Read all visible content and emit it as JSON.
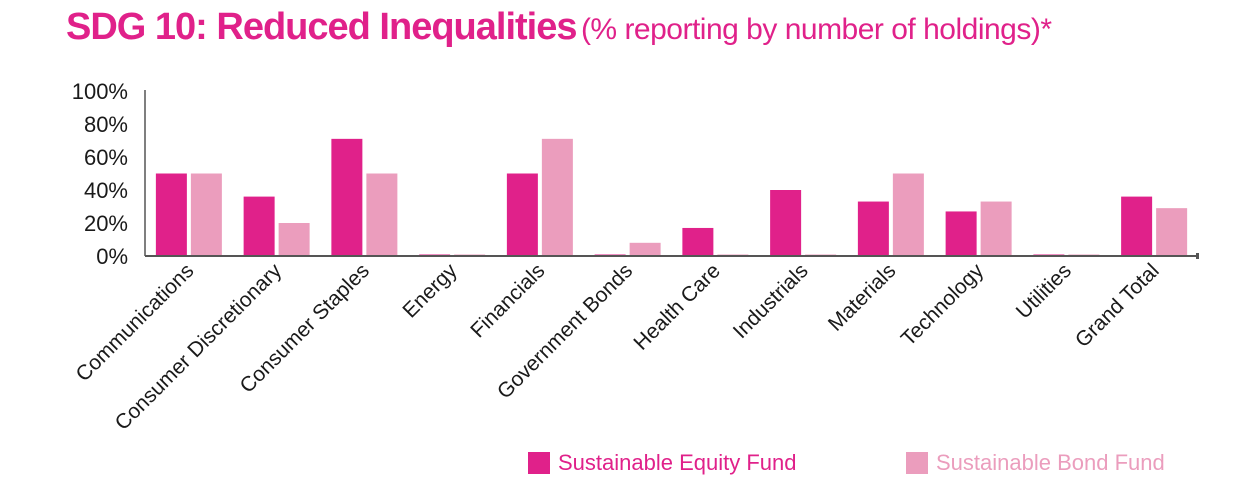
{
  "title": {
    "main": "SDG 10: Reduced Inequalities",
    "sub": "(% reporting by number of holdings)*"
  },
  "colors": {
    "accent": "#e0218a",
    "equity": "#e0218a",
    "bond": "#eb9dbd",
    "axis": "#555555",
    "text": "#1a1a1a"
  },
  "chart_data": {
    "type": "bar",
    "categories": [
      "Communications",
      "Consumer Discretionary",
      "Consumer Staples",
      "Energy",
      "Financials",
      "Government Bonds",
      "Health Care",
      "Industrials",
      "Materials",
      "Technology",
      "Utilities",
      "Grand Total"
    ],
    "series": [
      {
        "name": "Sustainable Equity Fund",
        "color": "#e0218a",
        "values": [
          50,
          36,
          71,
          0,
          50,
          0,
          17,
          40,
          33,
          27,
          0,
          36
        ]
      },
      {
        "name": "Sustainable Bond Fund",
        "color": "#eb9dbd",
        "values": [
          50,
          20,
          50,
          0,
          71,
          8,
          0,
          0,
          50,
          33,
          0,
          29
        ]
      }
    ],
    "yticks": [
      "0%",
      "20%",
      "40%",
      "60%",
      "80%",
      "100%"
    ],
    "ylim": [
      0,
      100
    ],
    "xlabel": "",
    "ylabel": "",
    "grid": false,
    "legend": "bottom-right"
  }
}
